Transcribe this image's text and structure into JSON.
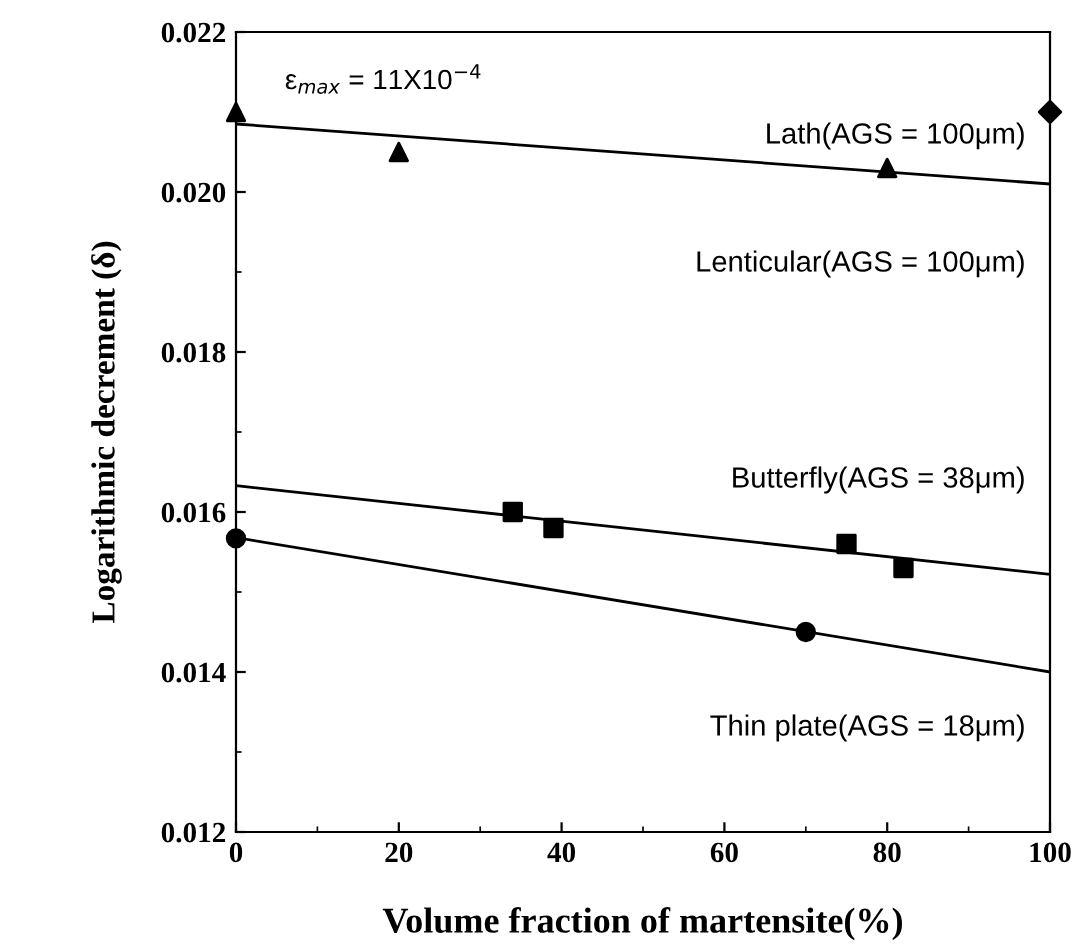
{
  "chart_data": {
    "type": "scatter",
    "xlabel": "Volume fraction of martensite(%)",
    "ylabel": "Logarithmic decrement (δ)",
    "xlim": [
      0,
      100
    ],
    "ylim": [
      0.012,
      0.022
    ],
    "xticks": [
      0,
      20,
      40,
      60,
      80,
      100
    ],
    "yticks": [
      {
        "value": 0.012,
        "label": "0.012"
      },
      {
        "value": 0.014,
        "label": "0.014"
      },
      {
        "value": 0.016,
        "label": "0.016"
      },
      {
        "value": 0.018,
        "label": "0.018"
      },
      {
        "value": 0.02,
        "label": "0.020"
      },
      {
        "value": 0.022,
        "label": "0.022"
      }
    ],
    "grid": false,
    "legend": false,
    "annotations": [
      "ε$_{max}$ = 11X10$^{−4}$",
      "Lath(AGS = 100μm)",
      "Lenticular(AGS = 100μm)",
      "Butterfly(AGS = 38μm)",
      "Thin plate(AGS = 18μm)"
    ],
    "series": [
      {
        "color": "#000000",
        "marker": "triangle",
        "x": [
          0,
          20,
          80
        ],
        "values": [
          0.021,
          0.0205,
          0.0203
        ]
      },
      {
        "color": "#000000",
        "marker": "diamond",
        "x": [
          100
        ],
        "values": [
          0.021
        ]
      },
      {
        "color": "#000000",
        "marker": "square",
        "x": [
          34,
          39,
          75,
          82
        ],
        "values": [
          0.016,
          0.0158,
          0.0156,
          0.0153
        ]
      },
      {
        "color": "#000000",
        "marker": "circle",
        "x": [
          0,
          70
        ],
        "values": [
          0.01567,
          0.0145
        ]
      },
      {
        "type": "line",
        "color": "#000000",
        "marker": "none",
        "line_style": "solid",
        "x": [
          0,
          100
        ],
        "values": [
          0.02085,
          0.0201
        ]
      },
      {
        "type": "line",
        "color": "#000000",
        "marker": "none",
        "line_style": "solid",
        "x": [
          0,
          100
        ],
        "values": [
          0.01633,
          0.01522
        ]
      },
      {
        "type": "line",
        "color": "#000000",
        "marker": "none",
        "line_style": "solid",
        "x": [
          0,
          100
        ],
        "values": [
          0.01568,
          0.014
        ]
      }
    ]
  }
}
